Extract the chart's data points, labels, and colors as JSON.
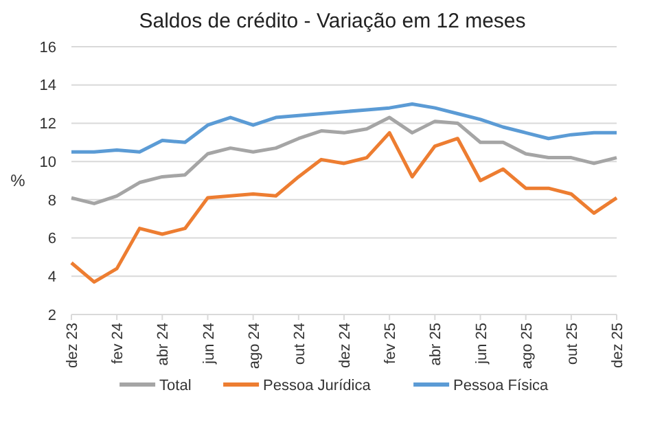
{
  "chart_data": {
    "type": "line",
    "title": "Saldos de crédito - Variação em 12 meses",
    "ylabel": "%",
    "categories": [
      "dez 23",
      null,
      "fev 24",
      null,
      "abr 24",
      null,
      "jun 24",
      null,
      "ago 24",
      null,
      "out 24",
      null,
      "dez 24",
      null,
      "fev 25",
      null,
      "abr 25",
      null,
      "jun 25",
      null,
      "ago 25",
      null,
      "out 25",
      null,
      "dez 25"
    ],
    "series": [
      {
        "name": "Total",
        "color": "#a5a5a5",
        "values": [
          8.1,
          7.8,
          8.2,
          8.9,
          9.2,
          9.3,
          10.4,
          10.7,
          10.5,
          10.7,
          11.2,
          11.6,
          11.5,
          11.7,
          12.3,
          11.5,
          12.1,
          12.0,
          11.0,
          11.0,
          10.4,
          10.2,
          10.2,
          9.9,
          10.2
        ]
      },
      {
        "name": "Pessoa Jurídica",
        "color": "#ed7d31",
        "values": [
          4.7,
          3.7,
          4.4,
          6.5,
          6.2,
          6.5,
          8.1,
          8.2,
          8.3,
          8.2,
          9.2,
          10.1,
          9.9,
          10.2,
          11.5,
          9.2,
          10.8,
          11.2,
          9.0,
          9.6,
          8.6,
          8.6,
          8.3,
          7.3,
          8.1
        ]
      },
      {
        "name": "Pessoa Física",
        "color": "#5b9bd5",
        "values": [
          10.5,
          10.5,
          10.6,
          10.5,
          11.1,
          11.0,
          11.9,
          12.3,
          11.9,
          12.3,
          12.4,
          12.5,
          12.6,
          12.7,
          12.8,
          13.0,
          12.8,
          12.5,
          12.2,
          11.8,
          11.5,
          11.2,
          11.4,
          11.5,
          11.5
        ]
      }
    ],
    "ylim": [
      2,
      16
    ],
    "yticks": [
      2,
      4,
      6,
      8,
      10,
      12,
      14,
      16
    ],
    "grid": "y",
    "legend": "bottom",
    "marker": "none",
    "line_style": "solid"
  }
}
